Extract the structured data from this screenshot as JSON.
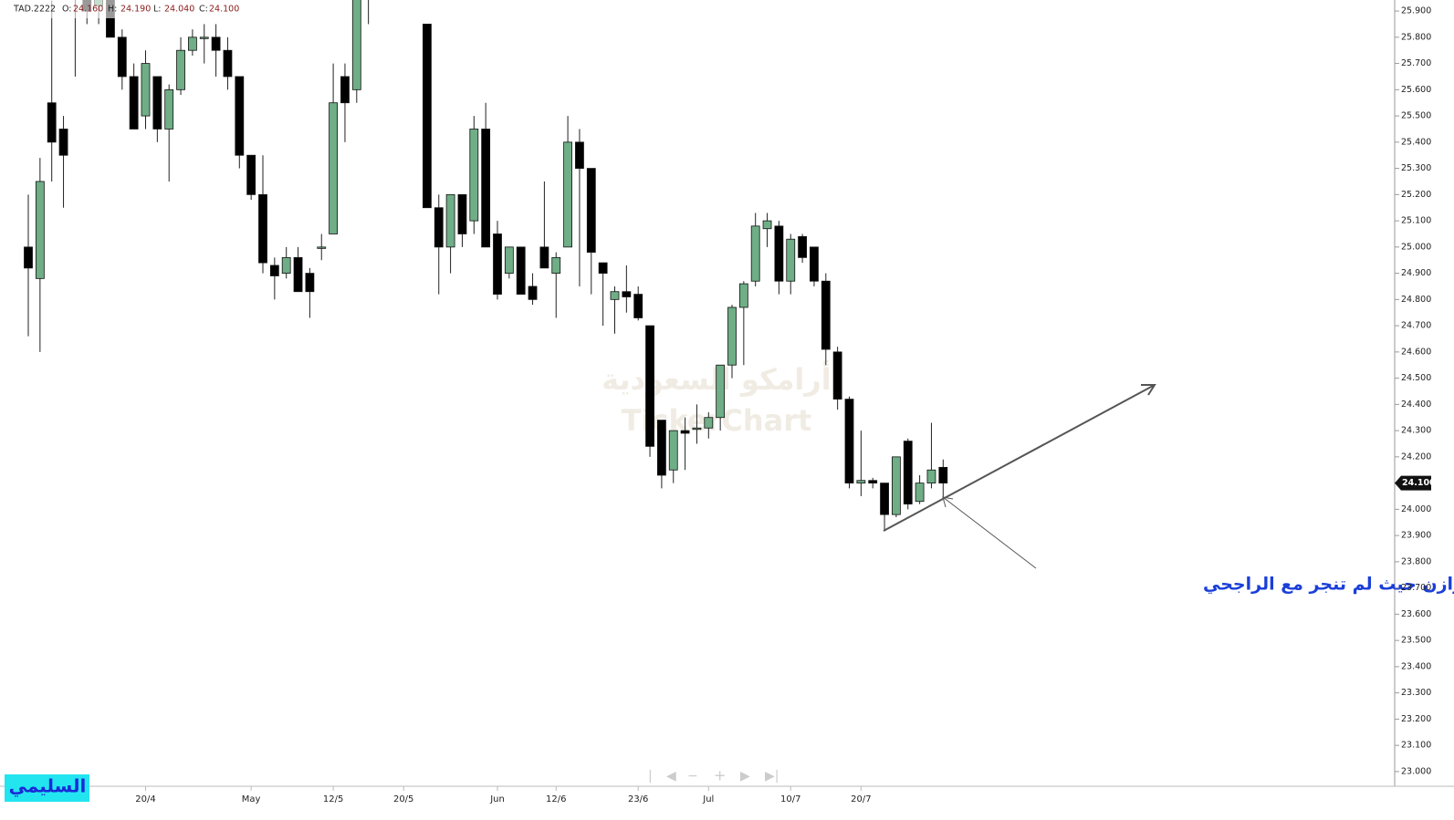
{
  "chart_data": {
    "type": "candlestick",
    "header": [
      "TAD.2222",
      "O:",
      "24.160",
      "H:",
      "24.190",
      "L:",
      "24.040",
      "C:",
      "24.100"
    ],
    "watermark": [
      "أرامكو السعودية",
      "TickerChart"
    ],
    "annotation": "وايضا ارامكو توازن حيث لم تنجر مع الراجحي",
    "author": "السليمي",
    "up_color": "#6fae86",
    "down_color": "#000000",
    "categories": [
      null,
      null,
      null,
      null,
      null,
      null,
      null,
      null,
      null,
      null,
      "20/4",
      null,
      null,
      null,
      null,
      null,
      null,
      null,
      null,
      "May",
      null,
      null,
      null,
      null,
      null,
      null,
      "12/5",
      null,
      null,
      null,
      null,
      null,
      "20/5",
      null,
      null,
      null,
      null,
      null,
      null,
      null,
      "Jun",
      null,
      null,
      null,
      null,
      "12/6",
      null,
      null,
      null,
      null,
      null,
      null,
      "23/6",
      null,
      null,
      null,
      null,
      null,
      "Jul",
      null,
      null,
      null,
      null,
      null,
      null,
      "10/7",
      null,
      null,
      null,
      null,
      null,
      "20/7",
      null,
      null,
      null,
      null,
      null,
      null,
      null
    ],
    "open": [
      25.0,
      24.88,
      25.55,
      25.45,
      25.95,
      26.0,
      25.92,
      26.0,
      25.8,
      25.65,
      25.5,
      25.65,
      25.45,
      25.6,
      25.75,
      25.8,
      25.8,
      25.75,
      25.65,
      25.35,
      25.2,
      24.93,
      24.9,
      24.96,
      24.9,
      25.0,
      25.05,
      25.65,
      25.6,
      26.1,
      null,
      null,
      null,
      null,
      25.85,
      25.15,
      25.0,
      25.2,
      25.1,
      25.45,
      25.05,
      24.9,
      25.0,
      24.85,
      25.0,
      24.9,
      25.0,
      25.4,
      25.3,
      24.94,
      24.8,
      24.83,
      24.82,
      24.7,
      24.34,
      24.15,
      24.3,
      24.31,
      24.31,
      24.35,
      24.55,
      24.77,
      24.87,
      25.07,
      25.08,
      24.87,
      25.04,
      25.0,
      24.87,
      24.6,
      24.42,
      24.1,
      24.11,
      24.1,
      23.98,
      24.26,
      24.03,
      24.1,
      24.16
    ],
    "high": [
      25.2,
      25.34,
      25.94,
      25.5,
      26.1,
      26.1,
      26.1,
      26.1,
      25.83,
      25.7,
      25.75,
      25.65,
      25.62,
      25.8,
      25.83,
      25.85,
      25.85,
      25.8,
      25.65,
      25.35,
      25.35,
      24.96,
      25.0,
      25.0,
      24.92,
      25.05,
      25.7,
      25.7,
      26.1,
      26.2,
      null,
      null,
      null,
      null,
      25.85,
      25.2,
      25.2,
      25.2,
      25.5,
      25.55,
      25.1,
      25.0,
      25.0,
      24.9,
      25.25,
      24.98,
      25.5,
      25.45,
      25.3,
      24.94,
      24.85,
      24.93,
      24.85,
      24.7,
      24.34,
      24.3,
      24.35,
      24.4,
      24.37,
      24.55,
      24.78,
      24.87,
      25.13,
      25.13,
      25.1,
      25.05,
      25.05,
      25.0,
      24.9,
      24.62,
      24.43,
      24.3,
      24.12,
      24.1,
      24.2,
      24.27,
      24.13,
      24.33,
      24.19
    ],
    "low": [
      24.66,
      24.6,
      25.25,
      25.15,
      25.65,
      25.85,
      25.85,
      25.8,
      25.6,
      25.45,
      25.45,
      25.4,
      25.25,
      25.58,
      25.73,
      25.7,
      25.65,
      25.6,
      25.3,
      25.18,
      24.9,
      24.8,
      24.88,
      24.83,
      24.73,
      24.95,
      25.05,
      25.4,
      25.55,
      25.85,
      null,
      null,
      null,
      null,
      25.15,
      24.82,
      24.9,
      25.0,
      25.05,
      25.0,
      24.8,
      24.88,
      24.82,
      24.78,
      24.92,
      24.73,
      25.0,
      24.85,
      24.82,
      24.7,
      24.67,
      24.75,
      24.72,
      24.2,
      24.08,
      24.1,
      24.15,
      24.25,
      24.27,
      24.3,
      24.5,
      24.55,
      24.85,
      25.0,
      24.82,
      24.82,
      24.94,
      24.85,
      24.55,
      24.38,
      24.08,
      24.05,
      24.08,
      23.92,
      23.97,
      24.0,
      24.02,
      24.08,
      24.04
    ],
    "close": [
      24.92,
      25.25,
      25.4,
      25.35,
      26.05,
      25.9,
      26.0,
      25.8,
      25.65,
      25.45,
      25.7,
      25.45,
      25.6,
      25.75,
      25.8,
      25.8,
      25.75,
      25.65,
      25.35,
      25.2,
      24.94,
      24.89,
      24.96,
      24.83,
      24.83,
      25.0,
      25.55,
      25.55,
      26.0,
      26.0,
      null,
      null,
      null,
      null,
      25.15,
      25.0,
      25.2,
      25.05,
      25.45,
      25.0,
      24.82,
      25.0,
      24.82,
      24.8,
      24.92,
      24.96,
      25.4,
      25.3,
      24.98,
      24.9,
      24.83,
      24.81,
      24.73,
      24.24,
      24.13,
      24.3,
      24.29,
      24.31,
      24.35,
      24.55,
      24.77,
      24.86,
      25.08,
      25.1,
      24.87,
      25.03,
      24.96,
      24.87,
      24.61,
      24.42,
      24.1,
      24.11,
      24.1,
      23.98,
      24.2,
      24.02,
      24.1,
      24.15,
      24.1
    ],
    "ylim": [
      22.944,
      25.942
    ],
    "yticks": [
      {
        "value": 23.0,
        "label": "23.000"
      },
      {
        "value": 23.1,
        "label": "23.100"
      },
      {
        "value": 23.2,
        "label": "23.200"
      },
      {
        "value": 23.3,
        "label": "23.300"
      },
      {
        "value": 23.4,
        "label": "23.400"
      },
      {
        "value": 23.5,
        "label": "23.500"
      },
      {
        "value": 23.6,
        "label": "23.600"
      },
      {
        "value": 23.7,
        "label": "23.700"
      },
      {
        "value": 23.8,
        "label": "23.800"
      },
      {
        "value": 23.9,
        "label": "23.900"
      },
      {
        "value": 24.0,
        "label": "24.000"
      },
      {
        "value": 24.1,
        "label": "24.100"
      },
      {
        "value": 24.2,
        "label": "24.200"
      },
      {
        "value": 24.3,
        "label": "24.300"
      },
      {
        "value": 24.4,
        "label": "24.400"
      },
      {
        "value": 24.5,
        "label": "24.500"
      },
      {
        "value": 24.6,
        "label": "24.600"
      },
      {
        "value": 24.7,
        "label": "24.700"
      },
      {
        "value": 24.8,
        "label": "24.800"
      },
      {
        "value": 24.9,
        "label": "24.900"
      },
      {
        "value": 25.0,
        "label": "25.000"
      },
      {
        "value": 25.1,
        "label": "25.100"
      },
      {
        "value": 25.2,
        "label": "25.200"
      },
      {
        "value": 25.3,
        "label": "25.300"
      },
      {
        "value": 25.4,
        "label": "25.400"
      },
      {
        "value": 25.5,
        "label": "25.500"
      },
      {
        "value": 25.6,
        "label": "25.600"
      },
      {
        "value": 25.7,
        "label": "25.700"
      },
      {
        "value": 25.8,
        "label": "25.800"
      },
      {
        "value": 25.9,
        "label": "25.900"
      }
    ],
    "last_price": {
      "value": 24.1,
      "label": "24.100"
    }
  }
}
